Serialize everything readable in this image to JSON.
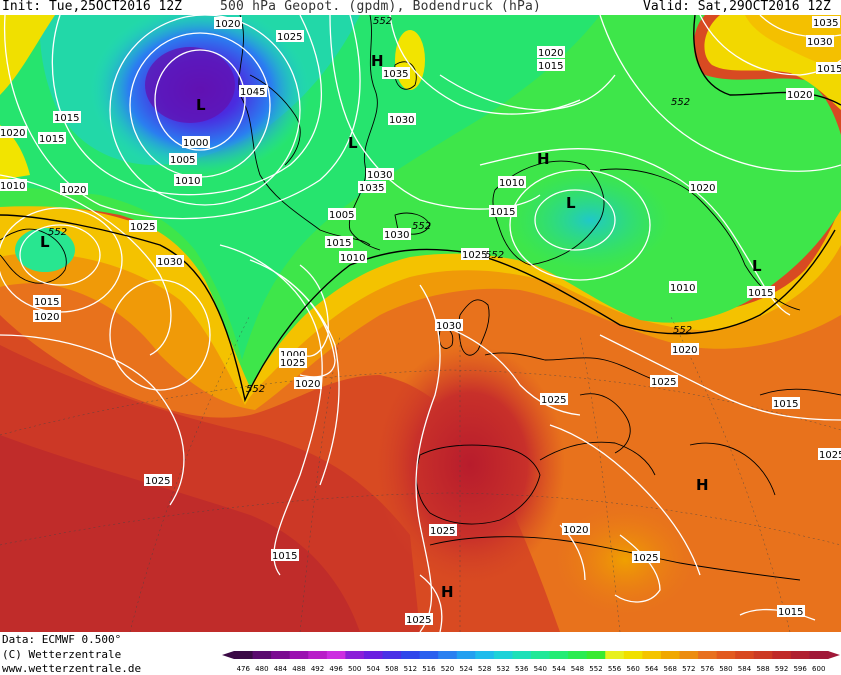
{
  "header": {
    "init": "Init: Tue,25OCT2016 12Z",
    "title": "500 hPa Geopot. (gpdm), Bodendruck (hPa)",
    "valid": "Valid: Sat,29OCT2016 12Z"
  },
  "footer": {
    "data_source": "Data: ECMWF  0.500°",
    "copyright": "(C) Wetterzentrale",
    "url": "www.wetterzentrale.de"
  },
  "legend": {
    "unit": "gpdm",
    "ticks": [
      "476",
      "480",
      "484",
      "488",
      "492",
      "496",
      "500",
      "504",
      "508",
      "512",
      "516",
      "520",
      "524",
      "528",
      "532",
      "536",
      "540",
      "544",
      "548",
      "552",
      "556",
      "560",
      "564",
      "568",
      "572",
      "576",
      "580",
      "584",
      "588",
      "592",
      "596",
      "600"
    ]
  },
  "colors": {
    "scale": [
      "#3a0a45",
      "#5a0a6e",
      "#7a0a90",
      "#9a10b0",
      "#b81ec8",
      "#cc2ee0",
      "#8a20d8",
      "#6a20e0",
      "#4a30e6",
      "#3046ea",
      "#2a60ee",
      "#2a80f0",
      "#24a0f0",
      "#20bcec",
      "#1ed2d8",
      "#1ee0b8",
      "#20e898",
      "#24ec74",
      "#2aec50",
      "#3aea30",
      "#e8f020",
      "#f0e000",
      "#f4c400",
      "#f0a800",
      "#ec8c10",
      "#e87020",
      "#e25a20",
      "#d84820",
      "#cc3a24",
      "#c02a28",
      "#b02030",
      "#a01838"
    ],
    "isobar": "#ffffff",
    "coast": "#000000"
  },
  "map": {
    "isobar_labels": [
      "1020",
      "1025",
      "1030",
      "1035",
      "1015",
      "1010",
      "1005",
      "1000",
      "1045",
      "1030",
      "1015",
      "1020",
      "1025",
      "1030",
      "1010",
      "1015",
      "1020",
      "1025",
      "1000",
      "1005",
      "1015",
      "1025",
      "1030",
      "1035",
      "1020",
      "1015",
      "1010",
      "1015",
      "1020",
      "1025",
      "1030",
      "1010",
      "1015",
      "1020",
      "1025",
      "1025",
      "1025",
      "1020",
      "1015",
      "1015",
      "1020",
      "1025",
      "1015",
      "1010",
      "1035",
      "1030",
      "1020",
      "1015",
      "1020",
      "1010",
      "1025",
      "1025"
    ],
    "contour_labels": [
      "552",
      "552",
      "552",
      "552",
      "552",
      "552",
      "552"
    ],
    "centers": [
      {
        "type": "L",
        "name": "greenland-low"
      },
      {
        "type": "H",
        "name": "greenland-high-small"
      },
      {
        "type": "L",
        "name": "greenland-low-west"
      },
      {
        "type": "H",
        "name": "scandinavia-high"
      },
      {
        "type": "L",
        "name": "baltic-low"
      },
      {
        "type": "L",
        "name": "russia-low"
      },
      {
        "type": "L",
        "name": "labrador-low"
      },
      {
        "type": "H",
        "name": "north-africa-high"
      },
      {
        "type": "H",
        "name": "morocco-high"
      }
    ]
  }
}
